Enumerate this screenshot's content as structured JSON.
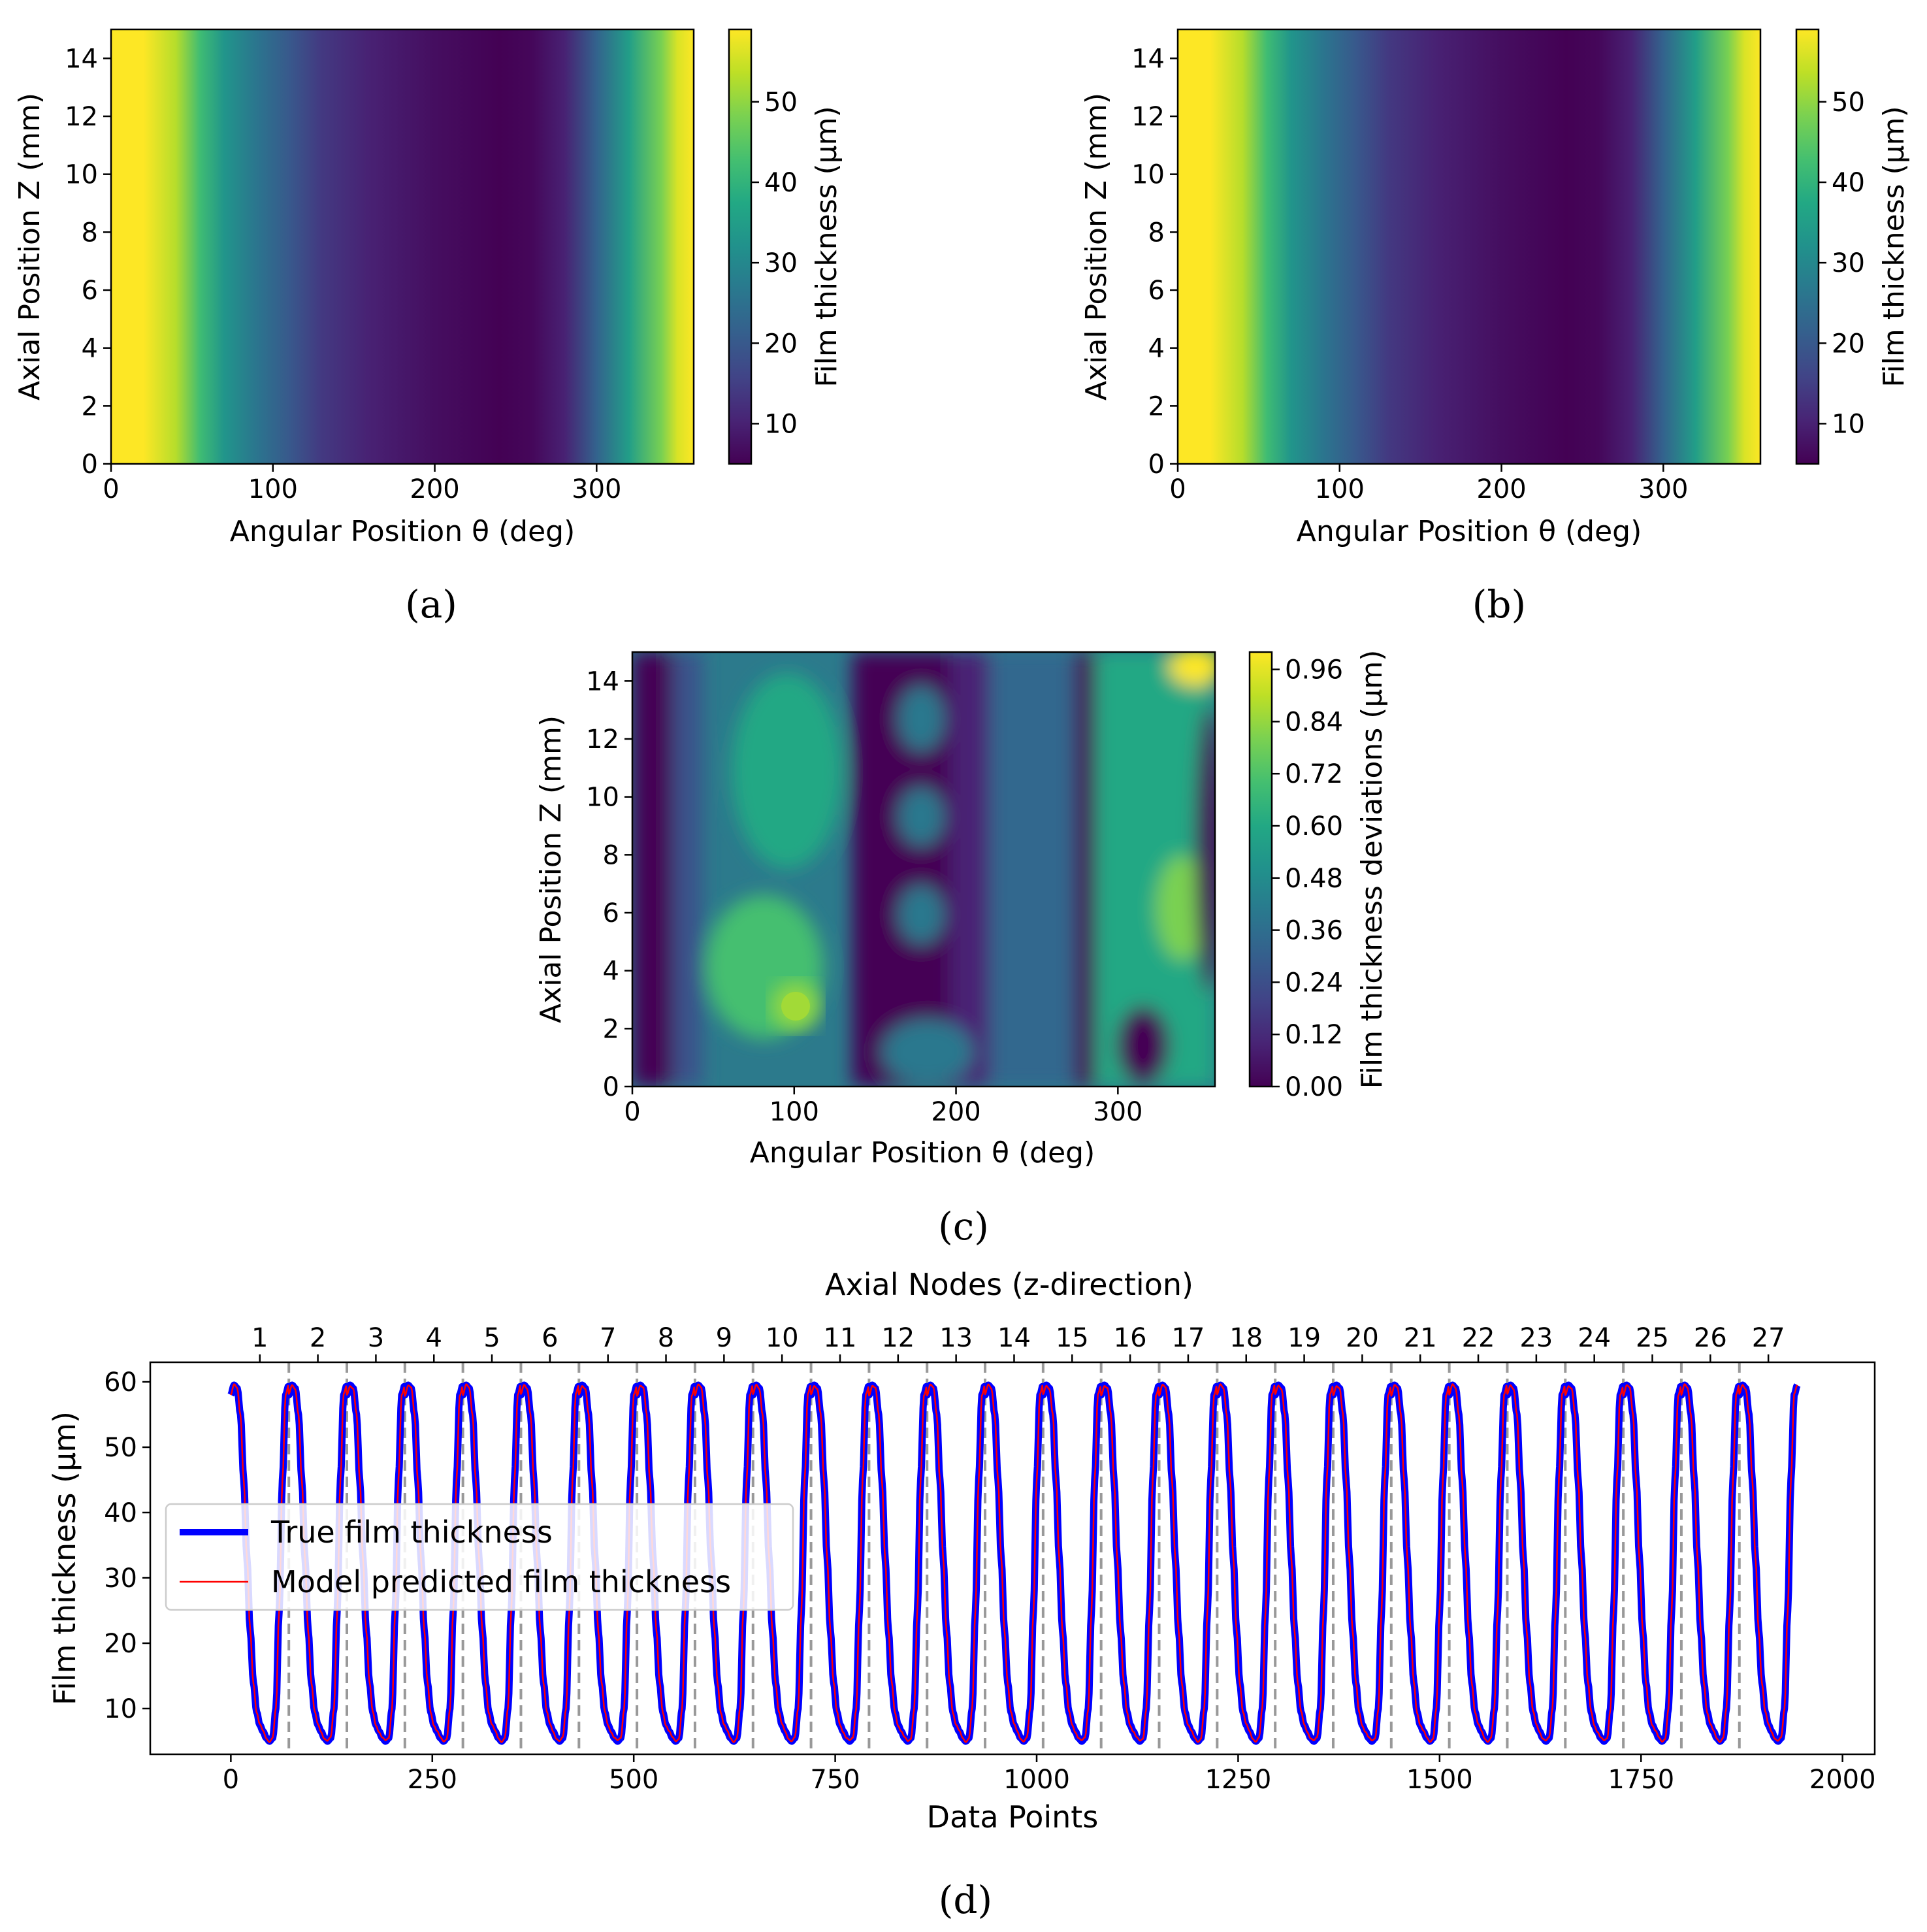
{
  "chart_data": [
    {
      "panel": "a",
      "type": "heatmap",
      "caption": "(a)",
      "xlabel": "Angular Position θ (deg)",
      "ylabel": "Axial Position Z (mm)",
      "xlim": [
        0,
        360
      ],
      "ylim": [
        0,
        15
      ],
      "xticks": [
        "0",
        "100",
        "200",
        "300"
      ],
      "yticks": [
        "0",
        "2",
        "4",
        "6",
        "8",
        "10",
        "12",
        "14"
      ],
      "colorbar": {
        "label": "Film thickness (μm)",
        "range": [
          5,
          59
        ],
        "ticks": [
          "10",
          "20",
          "30",
          "40",
          "50"
        ]
      },
      "profile_theta": [
        0,
        20,
        40,
        55,
        70,
        90,
        110,
        130,
        160,
        200,
        240,
        260,
        280,
        300,
        320,
        340,
        350,
        360
      ],
      "profile_thickness": [
        59,
        59,
        53,
        42,
        33,
        26,
        20,
        14,
        10,
        7,
        5,
        6,
        10,
        22,
        35,
        48,
        56,
        59
      ]
    },
    {
      "panel": "b",
      "type": "heatmap",
      "caption": "(b)",
      "xlabel": "Angular Position θ (deg)",
      "ylabel": "Axial Position Z (mm)",
      "xlim": [
        0,
        360
      ],
      "ylim": [
        0,
        15
      ],
      "xticks": [
        "0",
        "100",
        "200",
        "300"
      ],
      "yticks": [
        "0",
        "2",
        "4",
        "6",
        "8",
        "10",
        "12",
        "14"
      ],
      "colorbar": {
        "label": "Film thickness (μm)",
        "range": [
          5,
          59
        ],
        "ticks": [
          "10",
          "20",
          "30",
          "40",
          "50"
        ]
      },
      "profile_theta": [
        0,
        20,
        40,
        55,
        70,
        90,
        110,
        130,
        160,
        200,
        240,
        260,
        280,
        300,
        320,
        340,
        350,
        360
      ],
      "profile_thickness": [
        59,
        59,
        53,
        42,
        33,
        26,
        20,
        14,
        10,
        7,
        5,
        6,
        10,
        22,
        35,
        48,
        56,
        59
      ]
    },
    {
      "panel": "c",
      "type": "heatmap",
      "caption": "(c)",
      "xlabel": "Angular Position θ (deg)",
      "ylabel": "Axial Position Z (mm)",
      "xlim": [
        0,
        360
      ],
      "ylim": [
        0,
        15
      ],
      "xticks": [
        "0",
        "100",
        "200",
        "300"
      ],
      "yticks": [
        "0",
        "2",
        "4",
        "6",
        "8",
        "10",
        "12",
        "14"
      ],
      "colorbar": {
        "label": "Film thickness deviations (μm)",
        "range": [
          0,
          1.0
        ],
        "ticks": [
          "0.00",
          "0.12",
          "0.24",
          "0.36",
          "0.48",
          "0.60",
          "0.72",
          "0.84",
          "0.96"
        ]
      },
      "hotspots": [
        {
          "theta": 100,
          "z": 2.7,
          "value": 0.8
        },
        {
          "theta": 340,
          "z": 15,
          "value": 1.0
        },
        {
          "theta": 340,
          "z": 6,
          "value": 0.75
        },
        {
          "theta": 100,
          "z": 12.5,
          "value": 0.6
        }
      ]
    },
    {
      "panel": "d",
      "type": "line",
      "caption": "(d)",
      "title": "Axial Nodes (z-direction)",
      "xlabel": "Data Points",
      "ylabel": "Film thickness (μm)",
      "xlim": [
        -100,
        2040
      ],
      "ylim": [
        3,
        63
      ],
      "xticks": [
        "0",
        "250",
        "500",
        "750",
        "1000",
        "1250",
        "1500",
        "1750",
        "2000"
      ],
      "yticks": [
        "10",
        "20",
        "30",
        "40",
        "50",
        "60"
      ],
      "top_ticks": [
        "1",
        "2",
        "3",
        "4",
        "5",
        "6",
        "7",
        "8",
        "9",
        "10",
        "11",
        "12",
        "13",
        "14",
        "15",
        "16",
        "17",
        "18",
        "19",
        "20",
        "21",
        "22",
        "23",
        "24",
        "25",
        "26",
        "27"
      ],
      "points_per_node": 72,
      "num_nodes": 27,
      "node_profile": [
        58,
        59.5,
        59,
        55,
        45,
        33,
        22,
        14,
        9.5,
        7.5,
        6.5,
        5.5,
        5,
        5.5,
        10,
        25,
        45,
        58,
        59.5
      ],
      "legend": [
        "True film thickness",
        "Model predicted film thickness"
      ],
      "series": [
        {
          "name": "True film thickness",
          "color": "#0000ff"
        },
        {
          "name": "Model predicted film thickness",
          "color": "#ff0000"
        }
      ],
      "legend_position": "center-left"
    }
  ]
}
